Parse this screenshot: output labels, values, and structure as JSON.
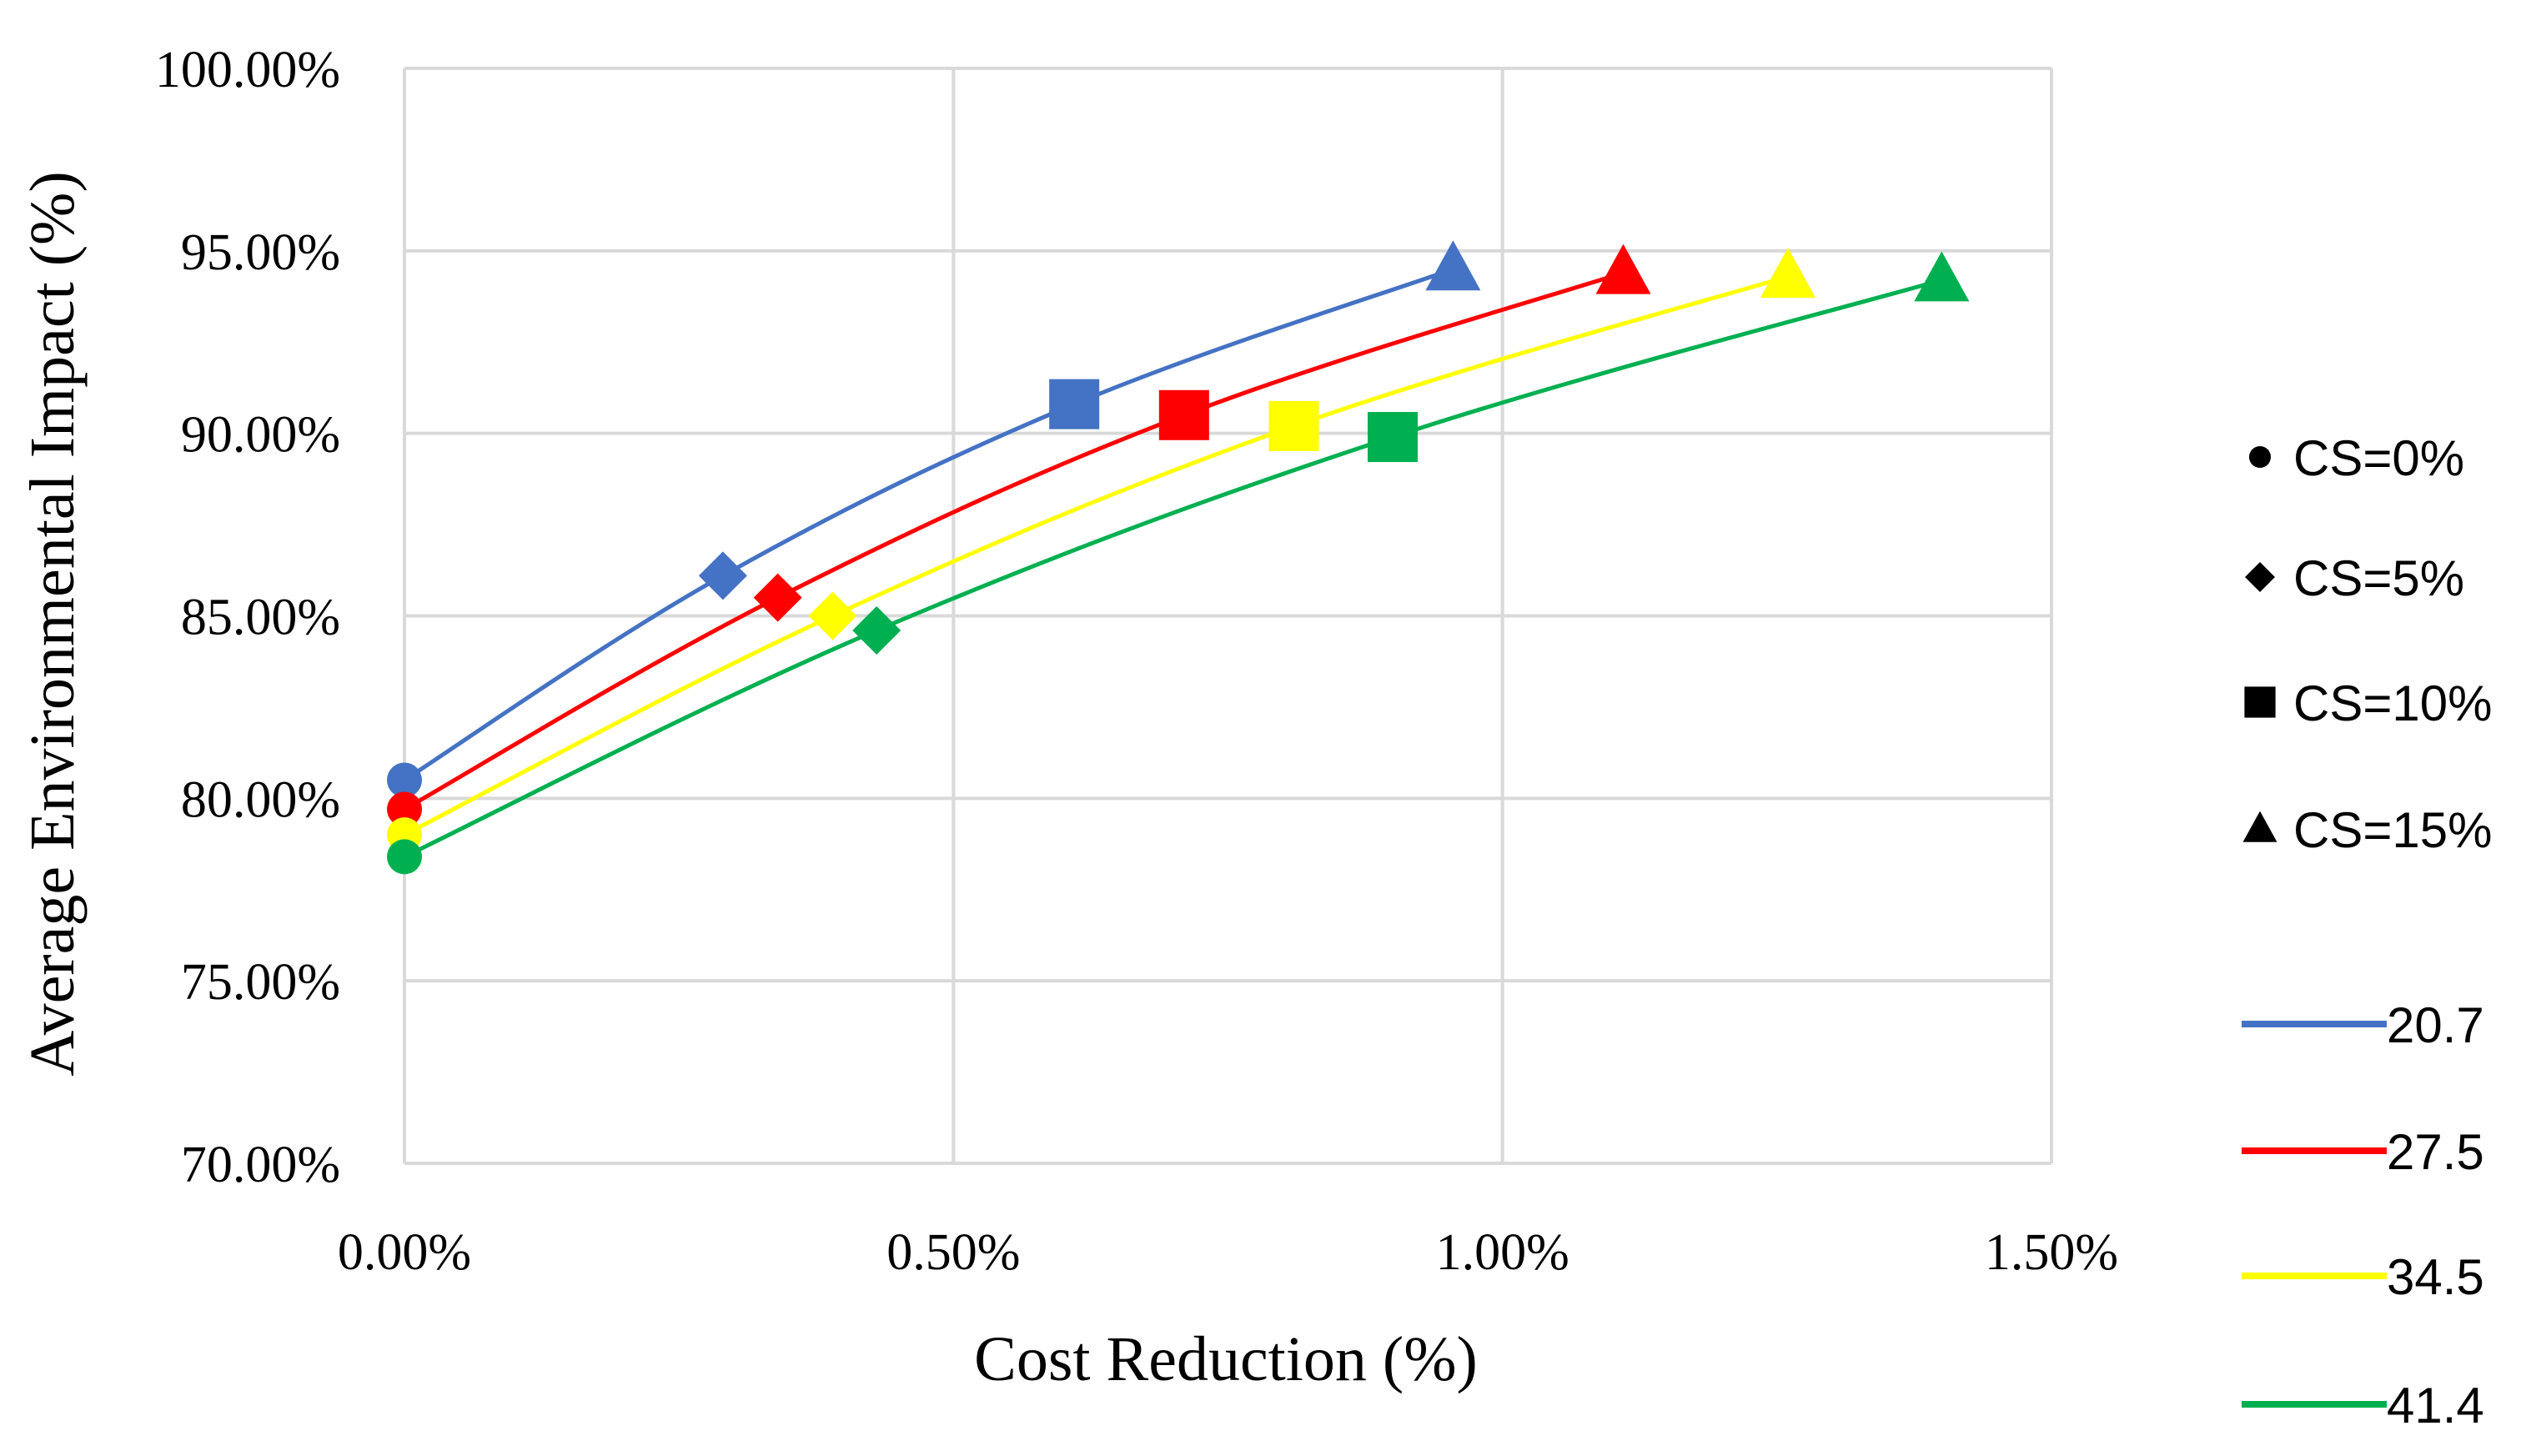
{
  "chart_data": {
    "type": "line",
    "title": "",
    "xlabel": "Cost Reduction (%)",
    "ylabel": "Average Environmental Impact (%)",
    "xlim": [
      0,
      1.5
    ],
    "ylim": [
      70,
      100
    ],
    "x_ticks": [
      "0.00%",
      "0.50%",
      "1.00%",
      "1.50%"
    ],
    "x_tick_values": [
      0,
      0.5,
      1.0,
      1.5
    ],
    "y_ticks": [
      "70.00%",
      "75.00%",
      "80.00%",
      "85.00%",
      "90.00%",
      "95.00%",
      "100.00%"
    ],
    "y_tick_values": [
      70,
      75,
      80,
      85,
      90,
      95,
      100
    ],
    "grid": true,
    "legend_position": "right",
    "marker_legend": [
      {
        "label": "CS=0%",
        "marker": "circle"
      },
      {
        "label": "CS=5%",
        "marker": "diamond"
      },
      {
        "label": "CS=10%",
        "marker": "square"
      },
      {
        "label": "CS=15%",
        "marker": "triangle"
      }
    ],
    "series": [
      {
        "name": "20.7",
        "color": "#4472C4",
        "points": [
          {
            "x": 0.0,
            "y": 80.5,
            "marker": "circle"
          },
          {
            "x": 0.29,
            "y": 86.1,
            "marker": "diamond"
          },
          {
            "x": 0.61,
            "y": 90.8,
            "marker": "square"
          },
          {
            "x": 0.955,
            "y": 94.5,
            "marker": "triangle"
          }
        ]
      },
      {
        "name": "27.5",
        "color": "#FF0000",
        "points": [
          {
            "x": 0.0,
            "y": 79.7,
            "marker": "circle"
          },
          {
            "x": 0.34,
            "y": 85.5,
            "marker": "diamond"
          },
          {
            "x": 0.71,
            "y": 90.5,
            "marker": "square"
          },
          {
            "x": 1.11,
            "y": 94.4,
            "marker": "triangle"
          }
        ]
      },
      {
        "name": "34.5",
        "color": "#FFFF00",
        "points": [
          {
            "x": 0.0,
            "y": 79.0,
            "marker": "circle"
          },
          {
            "x": 0.39,
            "y": 85.0,
            "marker": "diamond"
          },
          {
            "x": 0.81,
            "y": 90.2,
            "marker": "square"
          },
          {
            "x": 1.26,
            "y": 94.3,
            "marker": "triangle"
          }
        ]
      },
      {
        "name": "41.4",
        "color": "#00B050",
        "points": [
          {
            "x": 0.0,
            "y": 78.4,
            "marker": "circle"
          },
          {
            "x": 0.43,
            "y": 84.6,
            "marker": "diamond"
          },
          {
            "x": 0.9,
            "y": 89.9,
            "marker": "square"
          },
          {
            "x": 1.4,
            "y": 94.2,
            "marker": "triangle"
          }
        ]
      }
    ]
  }
}
